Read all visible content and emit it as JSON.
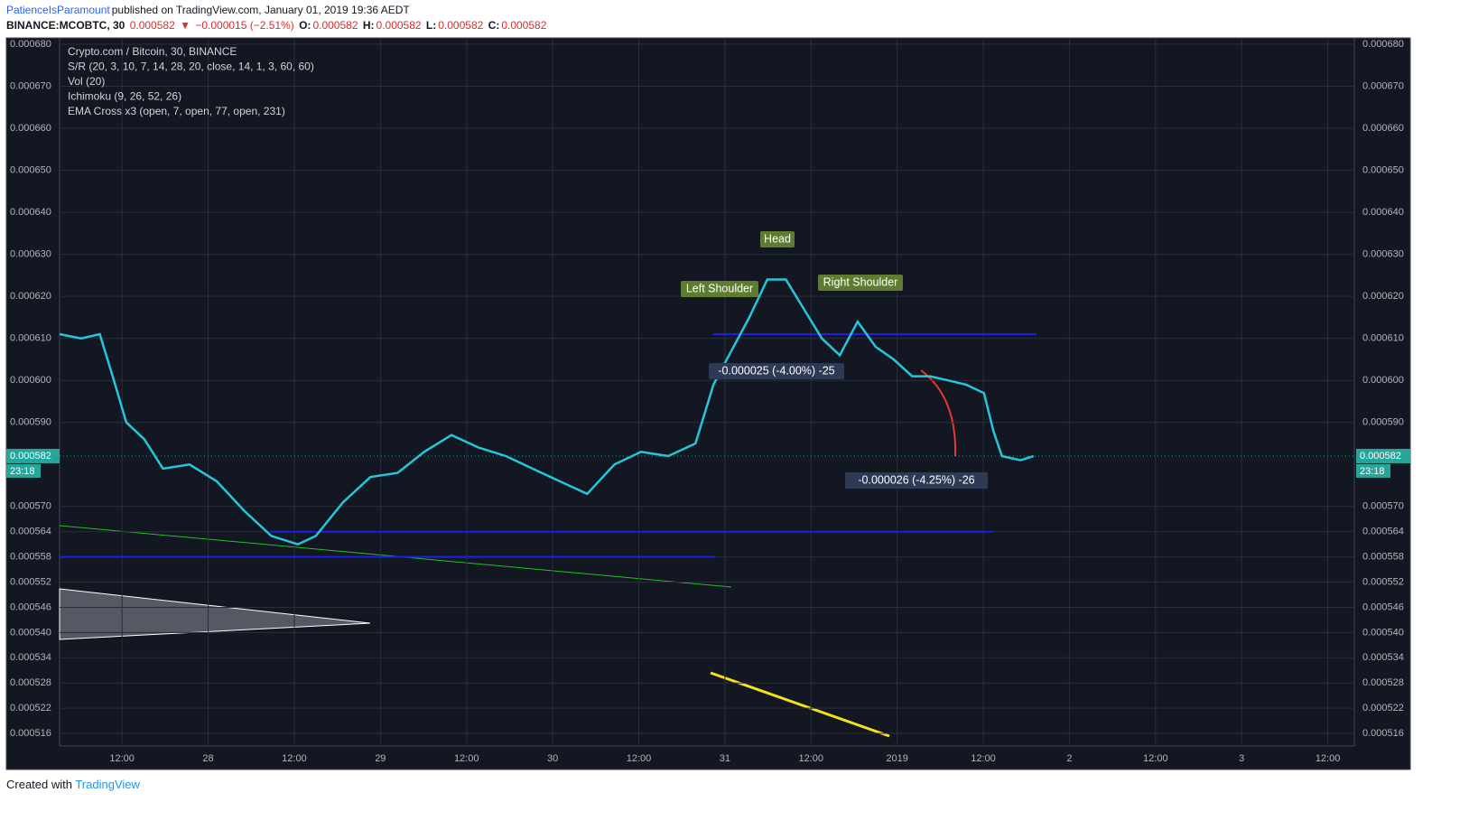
{
  "header": {
    "author": "PatienceIsParamount",
    "published": "published on TradingView.com, January 01, 2019 19:36 AEDT",
    "symbol": "BINANCE:MCOBTC, 30",
    "price": "0.000582",
    "arrow": "▼",
    "change": "−0.000015 (−2.51%)",
    "o_label": "O:",
    "o": "0.000582",
    "h_label": "H:",
    "h": "0.000582",
    "l_label": "L:",
    "l": "0.000582",
    "c_label": "C:",
    "c": "0.000582"
  },
  "legend": [
    "Crypto.com / Bitcoin, 30, BINANCE",
    "S/R (20, 3, 10, 7, 14, 28, 20, close, 14, 1, 3, 60, 60)",
    "Vol (20)",
    "Ichimoku (9, 26, 52, 26)",
    "EMA Cross x3 (open, 7, open, 77, open, 231)"
  ],
  "chart_data": {
    "type": "line",
    "x": [
      3.3,
      6.3,
      8.9,
      10.7,
      12.6,
      15.1,
      17.7,
      21.4,
      25.2,
      29,
      32.8,
      36.5,
      39,
      42.8,
      46.6,
      50.4,
      54.1,
      57.9,
      61.7,
      65.5,
      69.2,
      73,
      76.8,
      80.6,
      84.3,
      88.1,
      91.9,
      94.4,
      96.9,
      99.4,
      101.9,
      104.5,
      107,
      109.5,
      112,
      114.5,
      117,
      119.5,
      122.1,
      124.6,
      127.1,
      129.6,
      132.1,
      133.4,
      134.6,
      137.2,
      139
    ],
    "series": [
      {
        "color": "#26c6da",
        "values": [
          0.000611,
          0.00061,
          0.000611,
          0.000601,
          0.00059,
          0.000586,
          0.000579,
          0.00058,
          0.000576,
          0.000569,
          0.000563,
          0.000561,
          0.000563,
          0.000571,
          0.000577,
          0.000578,
          0.000583,
          0.000587,
          0.000584,
          0.000582,
          0.000579,
          0.000576,
          0.000573,
          0.00058,
          0.000583,
          0.000582,
          0.000585,
          0.000599,
          0.000607,
          0.000615,
          0.000624,
          0.000624,
          0.000617,
          0.00061,
          0.000606,
          0.000614,
          0.000608,
          0.000605,
          0.000601,
          0.000601,
          0.0006,
          0.000599,
          0.000597,
          0.000588,
          0.000582,
          0.000581,
          0.000582
        ]
      }
    ],
    "xlim": [
      3.3,
      183.7
    ],
    "xticks": [
      {
        "value": 12,
        "label": "12:00"
      },
      {
        "value": 24,
        "label": "28"
      },
      {
        "value": 36,
        "label": "12:00"
      },
      {
        "value": 48,
        "label": "29"
      },
      {
        "value": 60,
        "label": "12:00"
      },
      {
        "value": 72,
        "label": "30"
      },
      {
        "value": 84,
        "label": "12:00"
      },
      {
        "value": 96,
        "label": "31"
      },
      {
        "value": 108,
        "label": "12:00"
      },
      {
        "value": 120,
        "label": "2019"
      },
      {
        "value": 132,
        "label": "12:00"
      },
      {
        "value": 144,
        "label": "2"
      },
      {
        "value": 156,
        "label": "12:00"
      },
      {
        "value": 168,
        "label": "3"
      },
      {
        "value": 180,
        "label": "12:00"
      }
    ],
    "ylim": [
      0.000513,
      0.0006815
    ],
    "yticks": [
      {
        "value": 0.00068,
        "label": "0.000680"
      },
      {
        "value": 0.00067,
        "label": "0.000670"
      },
      {
        "value": 0.00066,
        "label": "0.000660"
      },
      {
        "value": 0.00065,
        "label": "0.000650"
      },
      {
        "value": 0.00064,
        "label": "0.000640"
      },
      {
        "value": 0.00063,
        "label": "0.000630"
      },
      {
        "value": 0.00062,
        "label": "0.000620"
      },
      {
        "value": 0.00061,
        "label": "0.000610"
      },
      {
        "value": 0.0006,
        "label": "0.000600"
      },
      {
        "value": 0.00059,
        "label": "0.000590"
      },
      {
        "value": 0.00057,
        "label": "0.000570"
      },
      0.000564,
      0.000558,
      0.000552,
      0.000546,
      {
        "value": 0.00054,
        "label": "0.000540"
      },
      0.000534,
      0.000528,
      0.000522,
      0.000516
    ],
    "grid": true,
    "support_resistance": {
      "color": "#1e1ee6",
      "values": [
        0.000611,
        0.000564,
        0.000558
      ]
    },
    "last_price": 0.000582,
    "countdown": "23:18",
    "annotations": [
      "Head",
      "Left Shoulder",
      "Right Shoulder",
      "-0.000025 (-4.00%) -25",
      "-0.000026 (-4.25%) -26"
    ]
  },
  "footer": {
    "prefix": "Created with",
    "brand": "TradingView"
  }
}
